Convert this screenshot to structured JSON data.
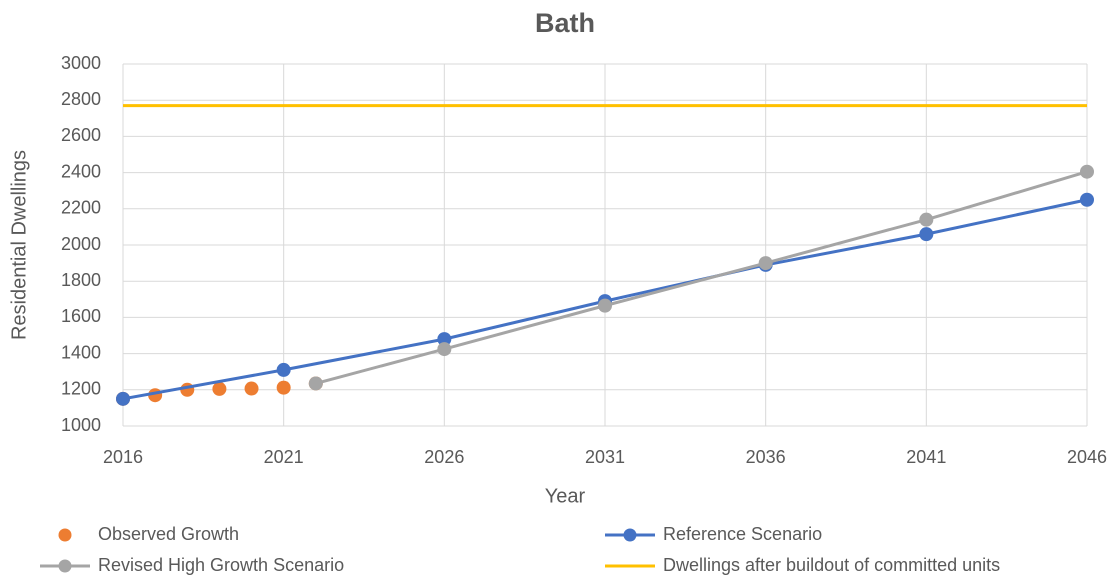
{
  "chart_data": {
    "type": "line",
    "title": "Bath",
    "xlabel": "Year",
    "ylabel": "Residential Dwellings",
    "xlim": [
      2016,
      2046
    ],
    "xticks": [
      2016,
      2021,
      2026,
      2031,
      2036,
      2041,
      2046
    ],
    "ylim": [
      1000,
      3000
    ],
    "yticks": [
      1000,
      1200,
      1400,
      1600,
      1800,
      2000,
      2200,
      2400,
      2600,
      2800,
      3000
    ],
    "grid": true,
    "legend": "bottom",
    "series": [
      {
        "name": "Observed Growth",
        "color": "#ed7d31",
        "style": "markers",
        "x": [
          2016,
          2017,
          2018,
          2019,
          2020,
          2021,
          2022
        ],
        "values": [
          1150,
          1170,
          1200,
          1205,
          1207,
          1212,
          1235
        ]
      },
      {
        "name": "Reference Scenario",
        "color": "#4472c4",
        "style": "line+markers",
        "x": [
          2016,
          2021,
          2026,
          2031,
          2036,
          2041,
          2046
        ],
        "values": [
          1150,
          1310,
          1480,
          1690,
          1890,
          2060,
          2250
        ]
      },
      {
        "name": "Revised High Growth Scenario",
        "color": "#a5a5a5",
        "style": "line+markers",
        "x": [
          2022,
          2026,
          2031,
          2036,
          2041,
          2046
        ],
        "values": [
          1235,
          1425,
          1665,
          1900,
          2140,
          2405
        ]
      },
      {
        "name": "Dwellings after buildout of committed units",
        "color": "#ffc000",
        "style": "line",
        "x": [
          2016,
          2046
        ],
        "values": [
          2770,
          2770
        ]
      }
    ]
  }
}
